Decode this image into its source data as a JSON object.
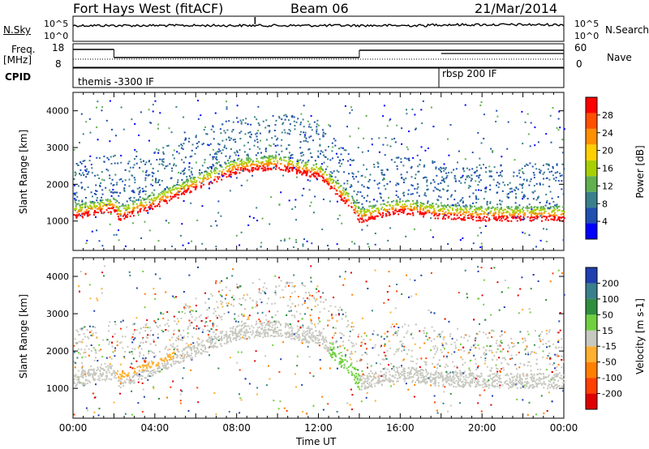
{
  "header": {
    "radar": "Fort Hays West (fitACF)",
    "beam": "Beam 06",
    "date": "21/Mar/2014"
  },
  "strips": {
    "nsky_label": "N.Sky",
    "nsky_ticks": [
      "10^5",
      "10^0"
    ],
    "nsearch_label": "N.Search",
    "freq_label": "Freq.",
    "freq_unit": "[MHz]",
    "freq_ticks": [
      "18",
      "8"
    ],
    "nave_label": "Nave",
    "nave_ticks": [
      "60",
      "0"
    ],
    "cpid_label": "CPID",
    "cpid_segments": [
      {
        "name": "themis -3300 IF",
        "start_hour": 0,
        "end_hour": 18
      },
      {
        "name": "rbsp 200 IF",
        "start_hour": 18,
        "end_hour": 24
      }
    ]
  },
  "chart_data": [
    {
      "type": "heatmap",
      "panel": "power",
      "ylabel": "Slant Range [km]",
      "ylim": [
        200,
        4500
      ],
      "yticks": [
        "1000",
        "2000",
        "3000",
        "4000"
      ],
      "xlim": [
        0,
        24
      ],
      "xticks": [
        "00:00",
        "04:00",
        "08:00",
        "12:00",
        "16:00",
        "20:00",
        "00:00"
      ],
      "colorbar": {
        "label": "Power [dB]",
        "ticks": [
          "4",
          "8",
          "12",
          "16",
          "20",
          "24",
          "28"
        ],
        "colors": [
          "#0000ff",
          "#1f4fb0",
          "#3a7f8c",
          "#60b050",
          "#a8d000",
          "#ffd000",
          "#ff9000",
          "#ff5000",
          "#ff0000"
        ]
      },
      "echo_band": {
        "hours": [
          0,
          2,
          2.2,
          4,
          6,
          8,
          10,
          12,
          13.5,
          14,
          16,
          18,
          20,
          22,
          24
        ],
        "range_km": [
          1150,
          1350,
          1100,
          1450,
          1950,
          2400,
          2500,
          2250,
          1450,
          1050,
          1300,
          1150,
          1100,
          1100,
          1100
        ]
      }
    },
    {
      "type": "heatmap",
      "panel": "velocity",
      "ylabel": "Slant Range [km]",
      "ylim": [
        200,
        4500
      ],
      "yticks": [
        "1000",
        "2000",
        "3000",
        "4000"
      ],
      "xlim": [
        0,
        24
      ],
      "xticks": [
        "00:00",
        "04:00",
        "08:00",
        "12:00",
        "16:00",
        "20:00",
        "00:00"
      ],
      "xlabel": "Time UT",
      "colorbar": {
        "label": "Velocity [m s-1]",
        "ticks": [
          "200",
          "100",
          "50",
          "15",
          "-15",
          "-50",
          "-100",
          "-200"
        ],
        "colors": [
          "#1f3fb0",
          "#3a7f8c",
          "#2f8f3f",
          "#70d040",
          "#c8c8c0",
          "#ffb030",
          "#ff8000",
          "#ff4000",
          "#e00000"
        ]
      }
    }
  ]
}
